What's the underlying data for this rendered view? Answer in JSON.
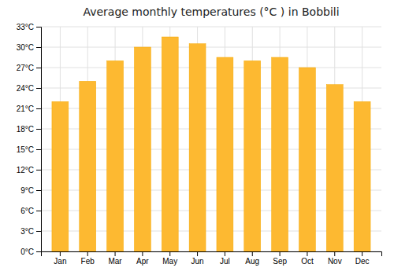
{
  "chart_data": {
    "type": "bar",
    "title": "Average monthly temperatures (°C ) in Bobbili",
    "categories": [
      "Jan",
      "Feb",
      "Mar",
      "Apr",
      "May",
      "Jun",
      "Jul",
      "Aug",
      "Sep",
      "Oct",
      "Nov",
      "Dec"
    ],
    "values": [
      22,
      25,
      28,
      30,
      31.5,
      30.5,
      28.5,
      28,
      28.5,
      27,
      24.5,
      22
    ],
    "color": "#FDB931",
    "ylim": [
      0,
      33
    ],
    "yticks": [
      {
        "value": 0,
        "label": "0°C"
      },
      {
        "value": 3,
        "label": "3°C"
      },
      {
        "value": 6,
        "label": "6°C"
      },
      {
        "value": 9,
        "label": "9°C"
      },
      {
        "value": 12,
        "label": "12°C"
      },
      {
        "value": 15,
        "label": "15°C"
      },
      {
        "value": 18,
        "label": "18°C"
      },
      {
        "value": 21,
        "label": "21°C"
      },
      {
        "value": 24,
        "label": "24°C"
      },
      {
        "value": 27,
        "label": "27°C"
      },
      {
        "value": 30,
        "label": "30°C"
      },
      {
        "value": 33,
        "label": "33°C"
      }
    ],
    "grid": true
  }
}
